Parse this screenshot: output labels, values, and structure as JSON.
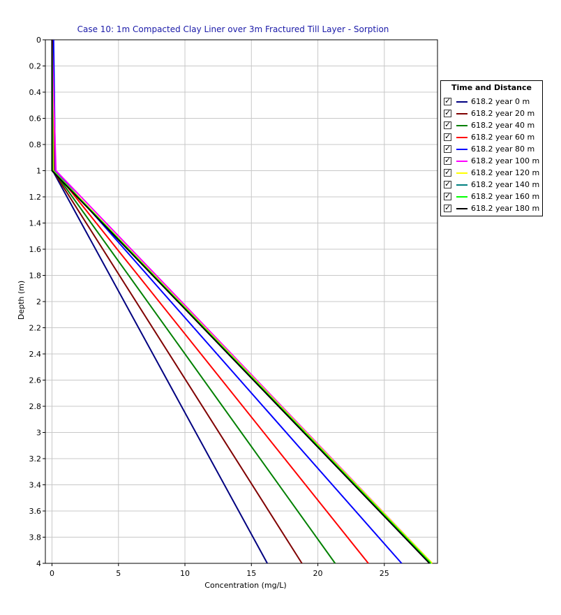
{
  "chart_data": {
    "type": "line",
    "title": "Case 10: 1m Compacted Clay Liner over 3m Fractured Till Layer - Sorption",
    "xlabel": "Concentration (mg/L)",
    "ylabel": "Depth (m)",
    "xlim": [
      -0.5,
      29
    ],
    "ylim": [
      0,
      4
    ],
    "y_inverted": true,
    "grid": true,
    "x_ticks": [
      "0",
      "5",
      "10",
      "15",
      "20",
      "25"
    ],
    "y_ticks": [
      "0",
      "0.2",
      "0.4",
      "0.6",
      "0.8",
      "1",
      "1.2",
      "1.4",
      "1.6",
      "1.8",
      "2",
      "2.2",
      "2.4",
      "2.6",
      "2.8",
      "3",
      "3.2",
      "3.4",
      "3.6",
      "3.8",
      "4"
    ],
    "legend": {
      "title": "Time and Distance",
      "placement": "right"
    },
    "series": [
      {
        "name": "618.2 year  0 m",
        "color": "#000080",
        "points": [
          [
            0.0,
            0
          ],
          [
            0.05,
            1
          ],
          [
            16.2,
            4
          ]
        ]
      },
      {
        "name": "618.2 year  20 m",
        "color": "#800000",
        "points": [
          [
            0.05,
            0
          ],
          [
            0.08,
            1
          ],
          [
            18.8,
            4
          ]
        ]
      },
      {
        "name": "618.2 year  40 m",
        "color": "#008000",
        "points": [
          [
            0.08,
            0
          ],
          [
            0.12,
            1
          ],
          [
            21.3,
            4
          ]
        ]
      },
      {
        "name": "618.2 year  60 m",
        "color": "#ff0000",
        "points": [
          [
            0.1,
            0
          ],
          [
            0.18,
            1
          ],
          [
            23.8,
            4
          ]
        ]
      },
      {
        "name": "618.2 year  80 m",
        "color": "#0000ff",
        "points": [
          [
            0.12,
            0
          ],
          [
            0.25,
            1
          ],
          [
            26.3,
            4
          ]
        ]
      },
      {
        "name": "618.2 year  100 m",
        "color": "#ff00ff",
        "points": [
          [
            0.0,
            0
          ],
          [
            0.3,
            1
          ],
          [
            28.6,
            4
          ]
        ]
      },
      {
        "name": "618.2 year  120 m",
        "color": "#ffff00",
        "points": [
          [
            0.0,
            0
          ],
          [
            0.1,
            1
          ],
          [
            28.6,
            4
          ]
        ]
      },
      {
        "name": "618.2 year  140 m",
        "color": "#008080",
        "points": [
          [
            0.0,
            0
          ],
          [
            0.05,
            1
          ],
          [
            28.5,
            4
          ]
        ]
      },
      {
        "name": "618.2 year  160 m",
        "color": "#00ff00",
        "points": [
          [
            0.0,
            0
          ],
          [
            0.05,
            1
          ],
          [
            28.5,
            4
          ]
        ]
      },
      {
        "name": "618.2 year  180 m",
        "color": "#000000",
        "points": [
          [
            0.0,
            0
          ],
          [
            0.0,
            1
          ],
          [
            28.4,
            4
          ]
        ]
      }
    ]
  }
}
